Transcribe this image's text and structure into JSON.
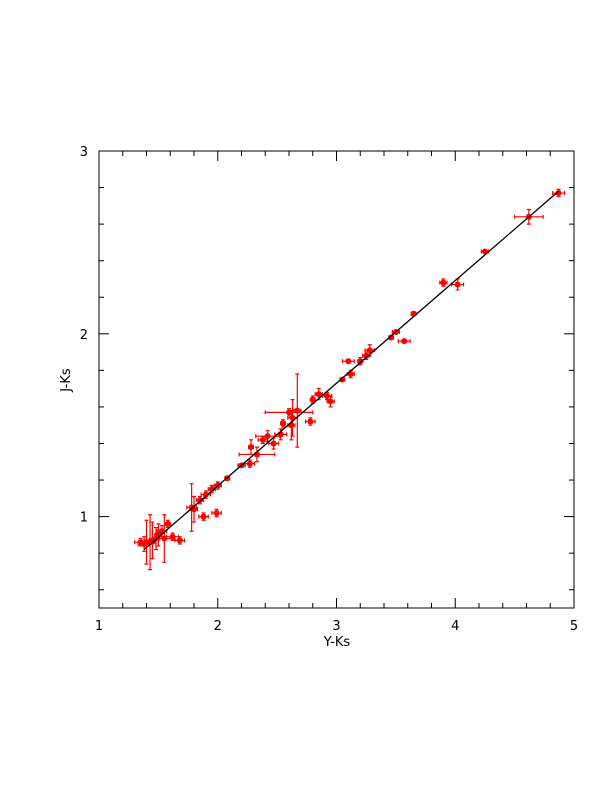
{
  "chart_data": {
    "type": "scatter",
    "xlabel": "Y-Ks",
    "ylabel": "J-Ks",
    "xlim": [
      1,
      5
    ],
    "ylim": [
      0.5,
      3
    ],
    "xticks": [
      1,
      2,
      3,
      4,
      5
    ],
    "yticks": [
      1,
      2,
      3
    ],
    "xminorticks": [
      1.2,
      1.4,
      1.6,
      1.8,
      2.2,
      2.4,
      2.6,
      2.8,
      3.2,
      3.4,
      3.6,
      3.8,
      4.2,
      4.4,
      4.6,
      4.8
    ],
    "yminorticks": [
      0.6,
      0.8,
      1.2,
      1.4,
      1.6,
      1.8,
      2.2,
      2.4,
      2.6,
      2.8
    ],
    "series": [
      {
        "color": "#ff0000",
        "x": [
          4.87,
          4.62,
          4.25,
          4.02,
          3.9,
          3.65,
          3.57,
          3.5,
          3.46,
          3.28,
          3.25,
          3.2,
          3.1,
          3.12,
          3.05,
          2.95,
          2.92,
          2.85,
          2.8,
          2.78,
          2.67,
          2.63,
          2.62,
          2.6,
          2.55,
          2.53,
          2.47,
          2.42,
          2.38,
          2.33,
          2.28,
          2.27,
          2.2,
          2.08,
          2.0,
          1.99,
          1.95,
          1.9,
          1.88,
          1.85,
          1.8,
          1.78,
          1.68,
          1.62,
          1.58,
          1.55,
          1.53,
          1.5,
          1.48,
          1.45,
          1.43,
          1.4,
          1.38,
          1.35
        ],
        "values": [
          2.77,
          2.64,
          2.45,
          2.27,
          2.28,
          2.11,
          1.96,
          2.01,
          1.98,
          1.91,
          1.88,
          1.85,
          1.85,
          1.78,
          1.75,
          1.63,
          1.66,
          1.67,
          1.64,
          1.52,
          1.58,
          1.54,
          1.5,
          1.57,
          1.51,
          1.45,
          1.4,
          1.44,
          1.42,
          1.34,
          1.38,
          1.29,
          1.28,
          1.21,
          1.17,
          1.02,
          1.15,
          1.12,
          1.0,
          1.09,
          1.04,
          1.05,
          0.87,
          0.89,
          0.96,
          0.88,
          0.92,
          0.9,
          0.88,
          0.87,
          0.86,
          0.86,
          0.85,
          0.86
        ],
        "xerr": [
          0.05,
          0.12,
          0.03,
          0.05,
          0.03,
          0.02,
          0.05,
          0.03,
          0.02,
          0.04,
          0.03,
          0.02,
          0.05,
          0.03,
          0.02,
          0.03,
          0.04,
          0.03,
          0.02,
          0.04,
          0.03,
          0.04,
          0.03,
          0.2,
          0.02,
          0.05,
          0.04,
          0.1,
          0.04,
          0.15,
          0.02,
          0.04,
          0.03,
          0.02,
          0.03,
          0.04,
          0.03,
          0.04,
          0.04,
          0.03,
          0.03,
          0.04,
          0.04,
          0.05,
          0.02,
          0.08,
          0.04,
          0.03,
          0.03,
          0.03,
          0.04,
          0.06,
          0.05,
          0.05
        ],
        "yerr": [
          0.02,
          0.04,
          0.01,
          0.03,
          0.02,
          0.01,
          0.01,
          0.01,
          0.01,
          0.03,
          0.02,
          0.02,
          0.01,
          0.02,
          0.01,
          0.03,
          0.02,
          0.03,
          0.02,
          0.02,
          0.2,
          0.1,
          0.08,
          0.02,
          0.02,
          0.03,
          0.03,
          0.03,
          0.02,
          0.04,
          0.04,
          0.02,
          0.01,
          0.01,
          0.02,
          0.02,
          0.02,
          0.02,
          0.02,
          0.02,
          0.07,
          0.13,
          0.02,
          0.02,
          0.02,
          0.13,
          0.03,
          0.06,
          0.06,
          0.1,
          0.15,
          0.12,
          0.04,
          0.02
        ]
      }
    ],
    "fit": {
      "color": "#000000",
      "x": [
        1.38,
        4.87
      ],
      "values": [
        0.82,
        2.78
      ]
    }
  }
}
